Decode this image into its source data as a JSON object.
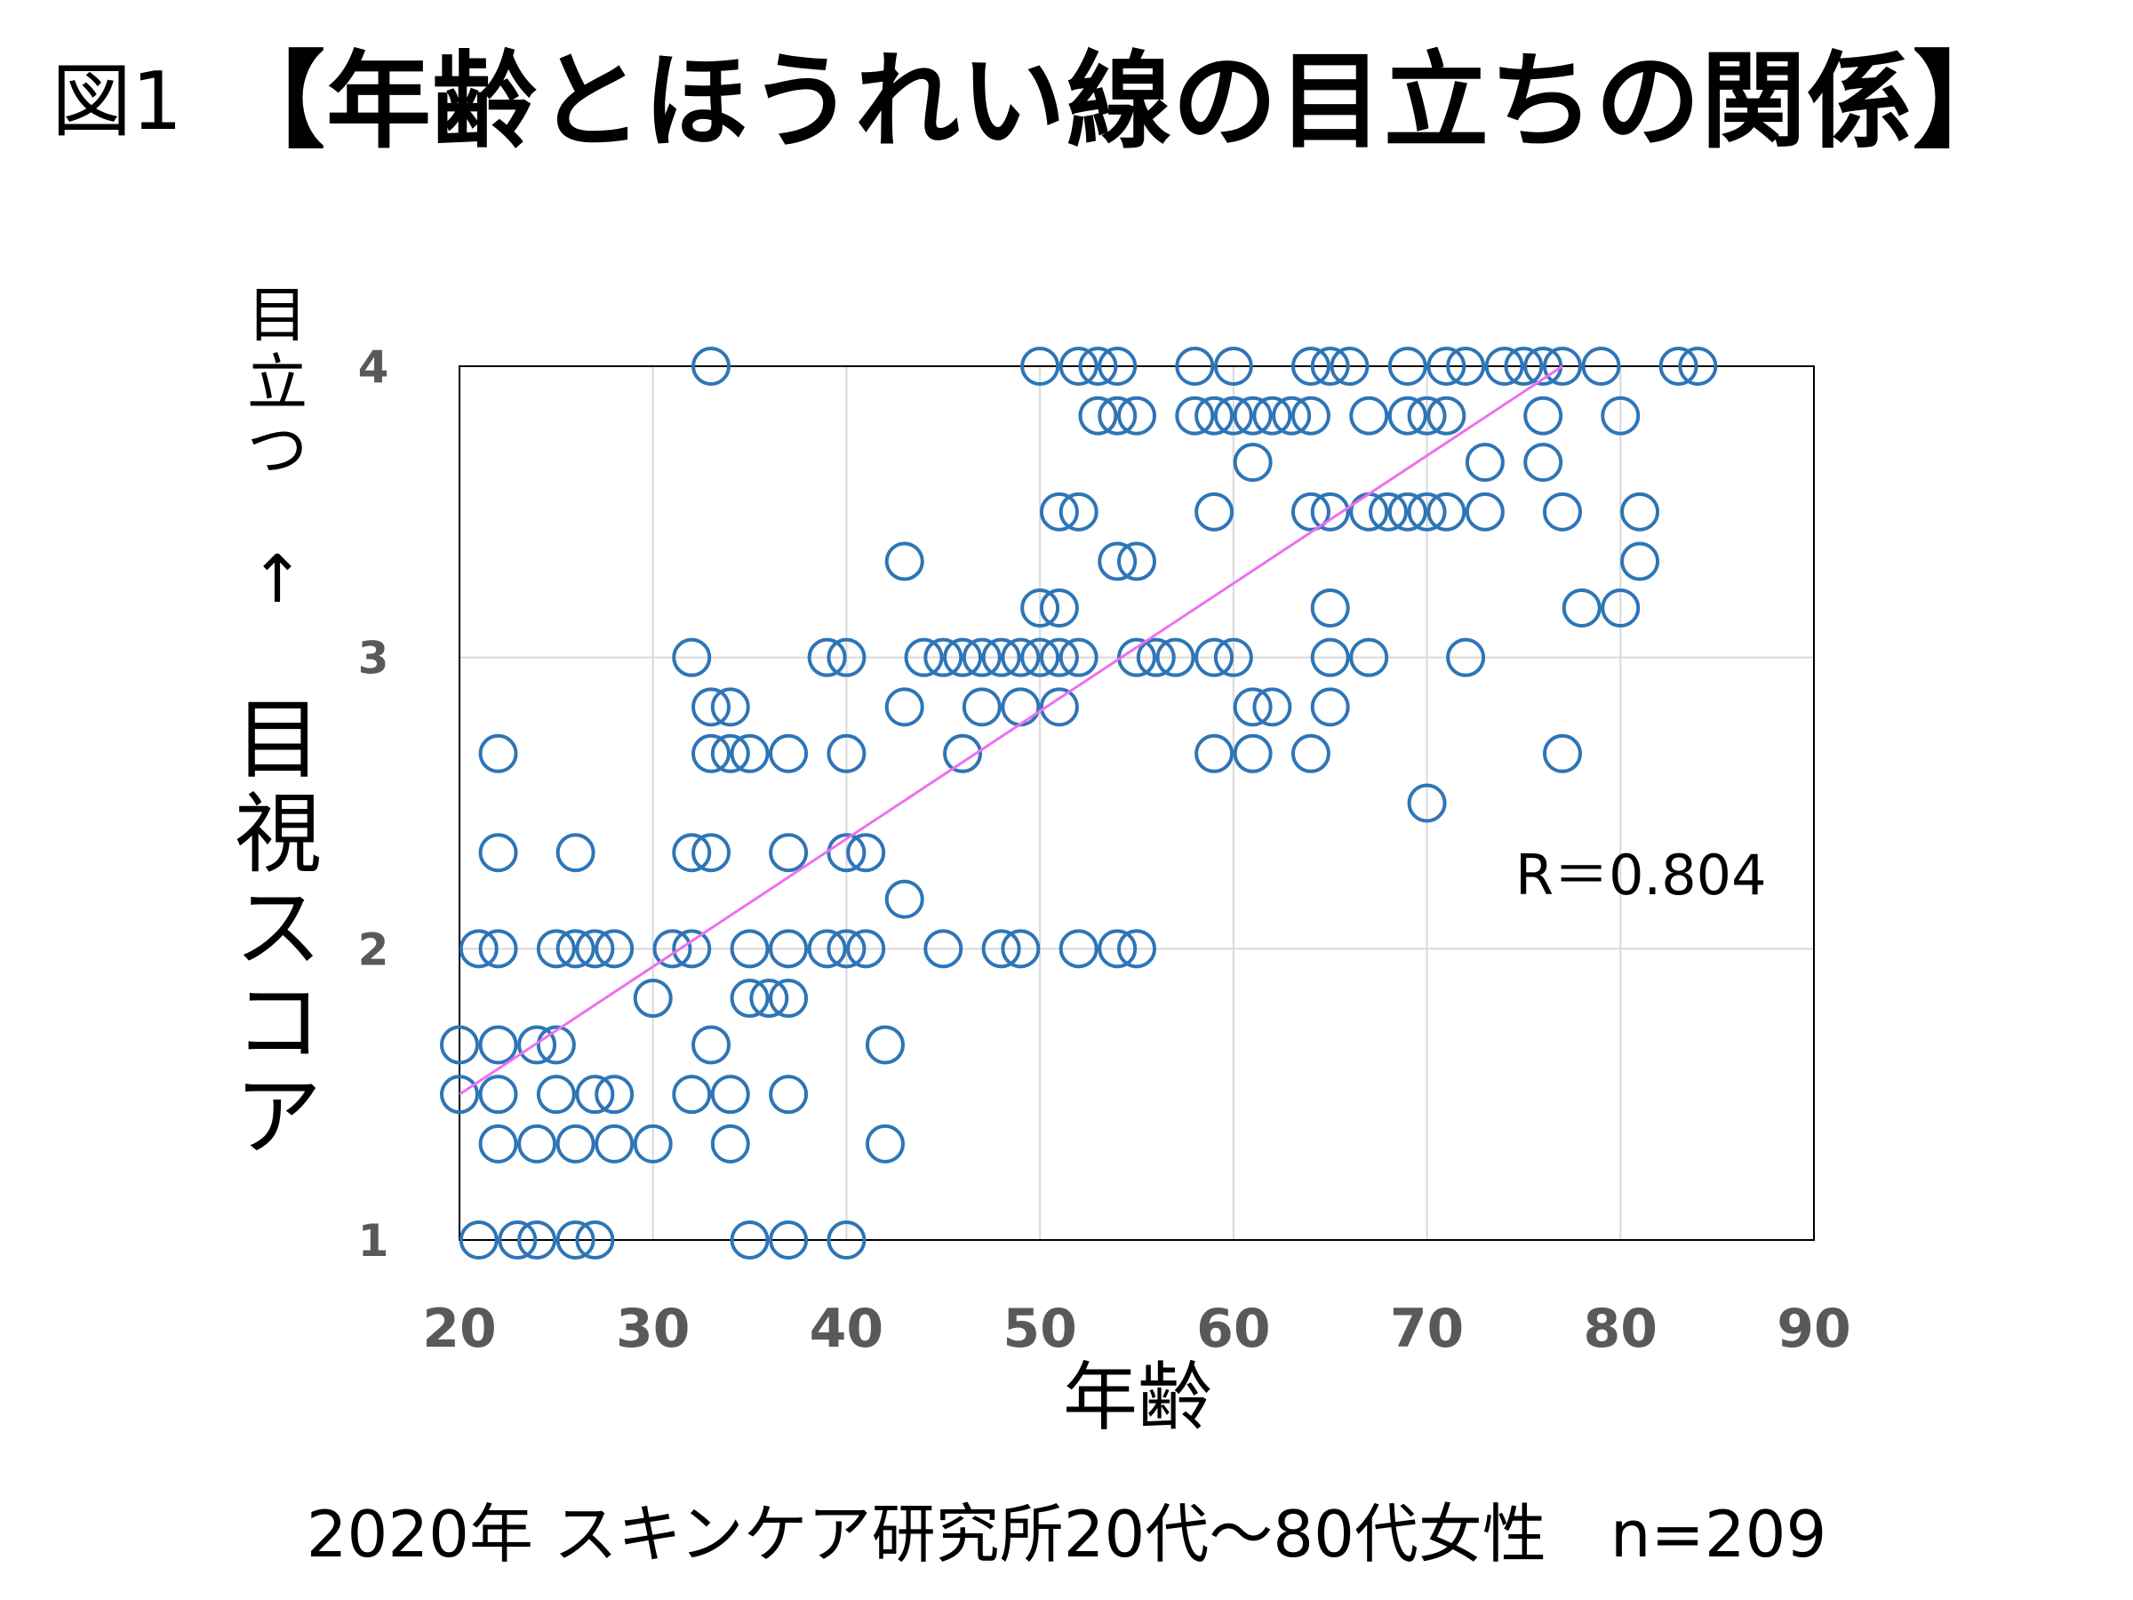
{
  "header": {
    "prefix": "図1",
    "title": "【年齢とほうれい線の目立ちの関係】"
  },
  "axis": {
    "y_small_label": "目立つ",
    "y_arrow": "↑",
    "y_big_label": "目視スコア",
    "x_label": "年齢"
  },
  "footer": {
    "source": "2020年 スキンケア研究所20代～80代女性　n=209"
  },
  "colors": {
    "marker": "#2e75b6",
    "trendline": "#ee6ff0",
    "grid": "#d9d9d9",
    "tick_text": "#595959"
  },
  "chart_data": {
    "type": "scatter",
    "xlabel": "年齢",
    "ylabel": "目視スコア",
    "xlim": [
      20,
      90
    ],
    "ylim": [
      1,
      4
    ],
    "x_ticks": [
      "20",
      "30",
      "40",
      "50",
      "60",
      "70",
      "80",
      "90"
    ],
    "y_ticks": [
      "1",
      "2",
      "3",
      "4"
    ],
    "grid": true,
    "annotation": "R＝0.804",
    "trendline": {
      "x": [
        20,
        77
      ],
      "y": [
        1.5,
        4.0
      ]
    },
    "points": [
      [
        33,
        4.0
      ],
      [
        50,
        4.0
      ],
      [
        52,
        4.0
      ],
      [
        53,
        4.0
      ],
      [
        54,
        4.0
      ],
      [
        58,
        4.0
      ],
      [
        60,
        4.0
      ],
      [
        64,
        4.0
      ],
      [
        65,
        4.0
      ],
      [
        66,
        4.0
      ],
      [
        69,
        4.0
      ],
      [
        71,
        4.0
      ],
      [
        72,
        4.0
      ],
      [
        74,
        4.0
      ],
      [
        75,
        4.0
      ],
      [
        76,
        4.0
      ],
      [
        77,
        4.0
      ],
      [
        79,
        4.0
      ],
      [
        83,
        4.0
      ],
      [
        84,
        4.0
      ],
      [
        53,
        3.83
      ],
      [
        54,
        3.83
      ],
      [
        55,
        3.83
      ],
      [
        58,
        3.83
      ],
      [
        59,
        3.83
      ],
      [
        60,
        3.83
      ],
      [
        61,
        3.83
      ],
      [
        62,
        3.83
      ],
      [
        63,
        3.83
      ],
      [
        64,
        3.83
      ],
      [
        67,
        3.83
      ],
      [
        69,
        3.83
      ],
      [
        70,
        3.83
      ],
      [
        71,
        3.83
      ],
      [
        76,
        3.83
      ],
      [
        80,
        3.83
      ],
      [
        61,
        3.67
      ],
      [
        73,
        3.67
      ],
      [
        76,
        3.67
      ],
      [
        51,
        3.5
      ],
      [
        52,
        3.5
      ],
      [
        59,
        3.5
      ],
      [
        64,
        3.5
      ],
      [
        65,
        3.5
      ],
      [
        67,
        3.5
      ],
      [
        68,
        3.5
      ],
      [
        69,
        3.5
      ],
      [
        70,
        3.5
      ],
      [
        71,
        3.5
      ],
      [
        73,
        3.5
      ],
      [
        77,
        3.5
      ],
      [
        81,
        3.5
      ],
      [
        43,
        3.33
      ],
      [
        54,
        3.33
      ],
      [
        55,
        3.33
      ],
      [
        81,
        3.33
      ],
      [
        50,
        3.17
      ],
      [
        51,
        3.17
      ],
      [
        65,
        3.17
      ],
      [
        78,
        3.17
      ],
      [
        80,
        3.17
      ],
      [
        32,
        3.0
      ],
      [
        39,
        3.0
      ],
      [
        40,
        3.0
      ],
      [
        44,
        3.0
      ],
      [
        45,
        3.0
      ],
      [
        46,
        3.0
      ],
      [
        47,
        3.0
      ],
      [
        48,
        3.0
      ],
      [
        49,
        3.0
      ],
      [
        50,
        3.0
      ],
      [
        51,
        3.0
      ],
      [
        52,
        3.0
      ],
      [
        55,
        3.0
      ],
      [
        56,
        3.0
      ],
      [
        57,
        3.0
      ],
      [
        59,
        3.0
      ],
      [
        60,
        3.0
      ],
      [
        65,
        3.0
      ],
      [
        67,
        3.0
      ],
      [
        72,
        3.0
      ],
      [
        33,
        2.83
      ],
      [
        34,
        2.83
      ],
      [
        43,
        2.83
      ],
      [
        47,
        2.83
      ],
      [
        49,
        2.83
      ],
      [
        51,
        2.83
      ],
      [
        61,
        2.83
      ],
      [
        62,
        2.83
      ],
      [
        65,
        2.83
      ],
      [
        22,
        2.67
      ],
      [
        33,
        2.67
      ],
      [
        34,
        2.67
      ],
      [
        35,
        2.67
      ],
      [
        37,
        2.67
      ],
      [
        40,
        2.67
      ],
      [
        46,
        2.67
      ],
      [
        59,
        2.67
      ],
      [
        61,
        2.67
      ],
      [
        64,
        2.67
      ],
      [
        77,
        2.67
      ],
      [
        70,
        2.5
      ],
      [
        22,
        2.33
      ],
      [
        26,
        2.33
      ],
      [
        32,
        2.33
      ],
      [
        33,
        2.33
      ],
      [
        37,
        2.33
      ],
      [
        40,
        2.33
      ],
      [
        41,
        2.33
      ],
      [
        43,
        2.17
      ],
      [
        21,
        2.0
      ],
      [
        22,
        2.0
      ],
      [
        25,
        2.0
      ],
      [
        26,
        2.0
      ],
      [
        27,
        2.0
      ],
      [
        28,
        2.0
      ],
      [
        31,
        2.0
      ],
      [
        32,
        2.0
      ],
      [
        35,
        2.0
      ],
      [
        37,
        2.0
      ],
      [
        39,
        2.0
      ],
      [
        40,
        2.0
      ],
      [
        41,
        2.0
      ],
      [
        45,
        2.0
      ],
      [
        48,
        2.0
      ],
      [
        49,
        2.0
      ],
      [
        52,
        2.0
      ],
      [
        54,
        2.0
      ],
      [
        55,
        2.0
      ],
      [
        30,
        1.83
      ],
      [
        35,
        1.83
      ],
      [
        36,
        1.83
      ],
      [
        37,
        1.83
      ],
      [
        20,
        1.67
      ],
      [
        22,
        1.67
      ],
      [
        24,
        1.67
      ],
      [
        25,
        1.67
      ],
      [
        33,
        1.67
      ],
      [
        42,
        1.67
      ],
      [
        20,
        1.5
      ],
      [
        22,
        1.5
      ],
      [
        25,
        1.5
      ],
      [
        27,
        1.5
      ],
      [
        28,
        1.5
      ],
      [
        32,
        1.5
      ],
      [
        34,
        1.5
      ],
      [
        37,
        1.5
      ],
      [
        22,
        1.33
      ],
      [
        24,
        1.33
      ],
      [
        26,
        1.33
      ],
      [
        28,
        1.33
      ],
      [
        30,
        1.33
      ],
      [
        34,
        1.33
      ],
      [
        42,
        1.33
      ],
      [
        21,
        1.0
      ],
      [
        23,
        1.0
      ],
      [
        24,
        1.0
      ],
      [
        26,
        1.0
      ],
      [
        27,
        1.0
      ],
      [
        35,
        1.0
      ],
      [
        37,
        1.0
      ],
      [
        40,
        1.0
      ]
    ]
  }
}
